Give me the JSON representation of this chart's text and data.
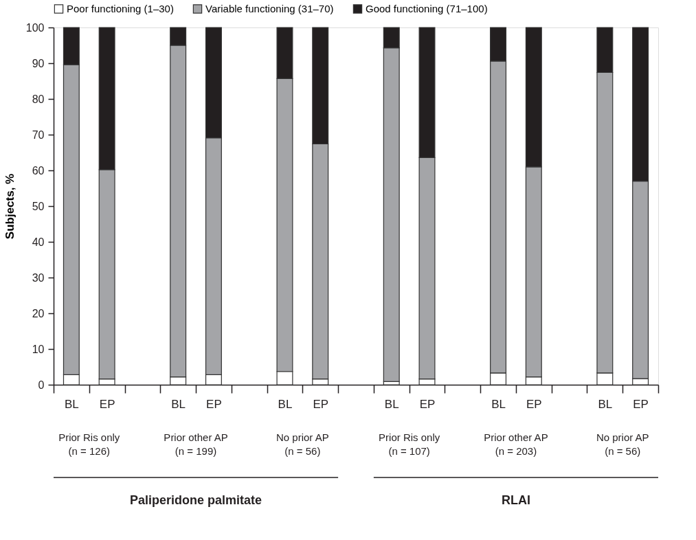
{
  "chart_data": {
    "type": "bar",
    "stacked": true,
    "ylabel": "Subjects, %",
    "categories": [
      "BL",
      "EP",
      "BL",
      "EP",
      "BL",
      "EP",
      "BL",
      "EP",
      "BL",
      "EP",
      "BL",
      "EP"
    ],
    "series": [
      {
        "name": "Poor functioning (1–30)",
        "color": "#ffffff",
        "values": [
          2.8,
          1.6,
          2.2,
          2.8,
          3.7,
          1.6,
          0.9,
          1.6,
          3.3,
          2.2,
          3.3,
          1.7
        ]
      },
      {
        "name": "Variable functioning (31–70)",
        "color": "#a4a5a8",
        "values": [
          86.8,
          58.6,
          92.8,
          66.3,
          82.0,
          65.8,
          93.4,
          62.0,
          87.3,
          58.8,
          84.1,
          55.3
        ]
      },
      {
        "name": "Good functioning (71–100)",
        "color": "#231f20",
        "values": [
          10.4,
          39.8,
          5.0,
          30.9,
          14.3,
          32.6,
          5.7,
          36.4,
          9.4,
          39.0,
          12.6,
          43.0
        ]
      }
    ],
    "ylim": [
      0,
      100
    ],
    "yticks": [
      0,
      10,
      20,
      30,
      40,
      50,
      60,
      70,
      80,
      90,
      100
    ],
    "grid": false,
    "legend": "top",
    "annotations": [
      "Prior Ris only\n(n = 126)",
      "Prior other AP\n(n = 199)",
      "No prior AP\n(n = 56)",
      "Prior Ris only\n(n = 107)",
      "Prior other AP\n(n = 203)",
      "No prior AP\n(n = 56)",
      "Paliperidone palmitate",
      "RLAI"
    ]
  }
}
